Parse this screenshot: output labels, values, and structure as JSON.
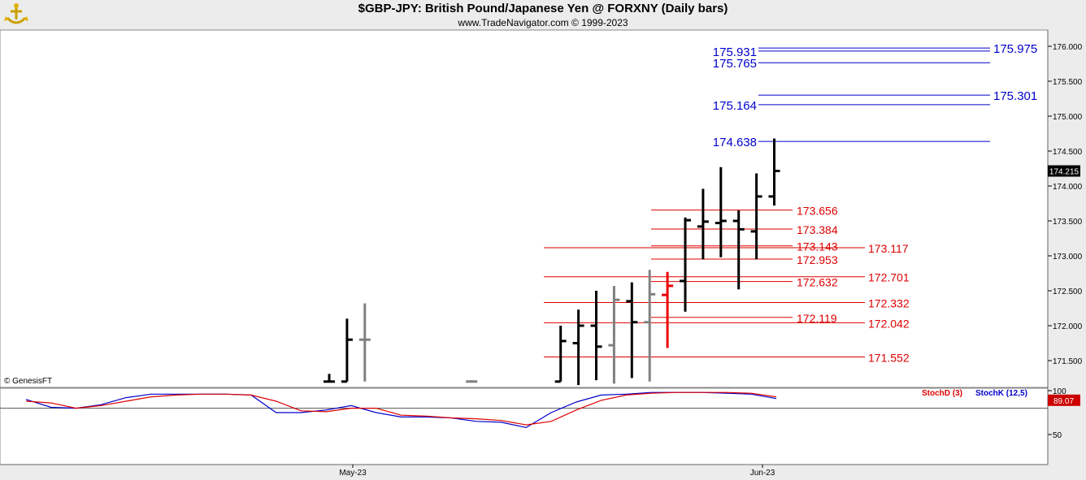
{
  "header": {
    "title": "$GBP-JPY:  British Pound/Japanese Yen @ FORXNY  (Daily bars)",
    "subtitle": "www.TradeNavigator.com © 1999-2023"
  },
  "watermark": "© GenesisFT",
  "colors": {
    "bar_up": "#000000",
    "bar_gray": "#808080",
    "bar_red": "#ee0000",
    "fib_blue": "#0000cc",
    "fib_red": "#dd0000",
    "stoch_k": "#0000cc",
    "stoch_d": "#dd0000",
    "price_tag_bg": "#000000",
    "stoch_tag_bg": "#cc0000"
  },
  "chart_data": [
    {
      "type": "ohlc",
      "name": "price",
      "y_axis": {
        "range": [
          171.2,
          176.2
        ],
        "ticks": [
          "176.000",
          "175.500",
          "175.000",
          "174.500",
          "174.000",
          "173.500",
          "173.000",
          "172.500",
          "172.000",
          "171.500"
        ],
        "current_price_label": "174.215",
        "current_price": 174.215
      },
      "x_axis": {
        "labels": [
          "May-23",
          "Jun-23"
        ]
      },
      "bars": [
        {
          "i": 0,
          "o": 171.2,
          "h": 171.31,
          "l": 171.2,
          "c": 171.2,
          "color": "black"
        },
        {
          "i": 1,
          "o": 171.2,
          "h": 172.1,
          "l": 171.2,
          "c": 171.8,
          "color": "black"
        },
        {
          "i": 2,
          "o": 171.8,
          "h": 172.32,
          "l": 171.2,
          "c": 171.8,
          "color": "gray"
        },
        {
          "i": 8,
          "o": 171.2,
          "h": 171.22,
          "l": 171.2,
          "c": 171.2,
          "color": "gray"
        },
        {
          "i": 13,
          "o": 171.2,
          "h": 172.0,
          "l": 171.2,
          "c": 171.78,
          "color": "black"
        },
        {
          "i": 14,
          "o": 171.75,
          "h": 172.23,
          "l": 171.15,
          "c": 172.0,
          "color": "black"
        },
        {
          "i": 15,
          "o": 172.0,
          "h": 172.5,
          "l": 171.22,
          "c": 171.7,
          "color": "black"
        },
        {
          "i": 16,
          "o": 171.72,
          "h": 172.57,
          "l": 171.17,
          "c": 172.37,
          "color": "gray"
        },
        {
          "i": 17,
          "o": 172.35,
          "h": 172.62,
          "l": 171.25,
          "c": 172.05,
          "color": "black"
        },
        {
          "i": 18,
          "o": 172.05,
          "h": 172.8,
          "l": 171.2,
          "c": 172.45,
          "color": "gray"
        },
        {
          "i": 19,
          "o": 172.44,
          "h": 172.77,
          "l": 171.68,
          "c": 172.57,
          "color": "red"
        },
        {
          "i": 20,
          "o": 172.64,
          "h": 173.55,
          "l": 172.2,
          "c": 173.51,
          "color": "black"
        },
        {
          "i": 21,
          "o": 173.42,
          "h": 173.96,
          "l": 172.95,
          "c": 173.49,
          "color": "black"
        },
        {
          "i": 22,
          "o": 173.47,
          "h": 174.27,
          "l": 172.98,
          "c": 173.5,
          "color": "black"
        },
        {
          "i": 23,
          "o": 173.5,
          "h": 173.65,
          "l": 172.52,
          "c": 173.38,
          "color": "black"
        },
        {
          "i": 24,
          "o": 173.35,
          "h": 174.18,
          "l": 172.95,
          "c": 173.85,
          "color": "black"
        },
        {
          "i": 25,
          "o": 173.85,
          "h": 174.68,
          "l": 173.72,
          "c": 174.215,
          "color": "black"
        }
      ],
      "fibonacci_blue": [
        {
          "label": "175.975",
          "value": 175.975,
          "side": "right"
        },
        {
          "label": "175.931",
          "value": 175.931,
          "side": "left"
        },
        {
          "label": "175.765",
          "value": 175.765,
          "side": "left"
        },
        {
          "label": "175.301",
          "value": 175.301,
          "side": "right"
        },
        {
          "label": "175.164",
          "value": 175.164,
          "side": "left"
        },
        {
          "label": "174.638",
          "value": 174.638,
          "side": "left"
        }
      ],
      "fibonacci_red": [
        {
          "label": "173.656",
          "value": 173.656,
          "group": "inner"
        },
        {
          "label": "173.384",
          "value": 173.384,
          "group": "inner"
        },
        {
          "label": "173.143",
          "value": 173.143,
          "group": "inner"
        },
        {
          "label": "173.117",
          "value": 173.117,
          "group": "outer"
        },
        {
          "label": "172.953",
          "value": 172.953,
          "group": "inner"
        },
        {
          "label": "172.701",
          "value": 172.701,
          "group": "outer"
        },
        {
          "label": "172.632",
          "value": 172.632,
          "group": "inner"
        },
        {
          "label": "172.332",
          "value": 172.332,
          "group": "outer"
        },
        {
          "label": "172.119",
          "value": 172.119,
          "group": "inner"
        },
        {
          "label": "172.042",
          "value": 172.042,
          "group": "outer"
        },
        {
          "label": "171.552",
          "value": 171.552,
          "group": "outer"
        }
      ]
    },
    {
      "type": "line",
      "name": "stochastic",
      "y_axis": {
        "range": [
          20,
          110
        ],
        "ticks": [
          "100",
          "50"
        ],
        "current_label": "89.07",
        "current": 89.07,
        "reference_line": 80
      },
      "legend": [
        {
          "name": "StochD (3)",
          "color": "#dd0000"
        },
        {
          "name": "StochK (12,5)",
          "color": "#0000cc"
        }
      ],
      "series": [
        {
          "name": "StochK (12,5)",
          "values": [
            90,
            81,
            80,
            84,
            92,
            96,
            96,
            96,
            96,
            95,
            75,
            75,
            78,
            83,
            75,
            70,
            70,
            69,
            65,
            64,
            58,
            75,
            87,
            95,
            96,
            98,
            98,
            98,
            97,
            96,
            91
          ]
        },
        {
          "name": "StochD (3)",
          "values": [
            88,
            86,
            80,
            83,
            88,
            93,
            95,
            96,
            96,
            95,
            88,
            77,
            76,
            80,
            80,
            72,
            71,
            69,
            68,
            66,
            61,
            65,
            78,
            89,
            95,
            97,
            98,
            98,
            98,
            97,
            93
          ]
        }
      ]
    }
  ]
}
